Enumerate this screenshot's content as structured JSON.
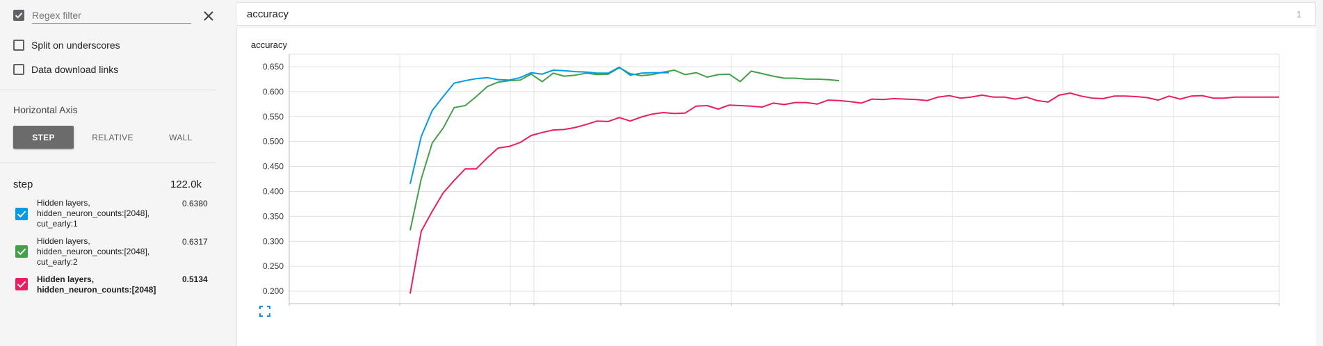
{
  "sidebar": {
    "regex_checkbox_checked": true,
    "regex_placeholder": "Regex filter",
    "split_on_underscores_label": "Split on underscores",
    "data_download_links_label": "Data download links",
    "horizontal_axis_title": "Horizontal Axis",
    "axis_buttons": [
      "STEP",
      "RELATIVE",
      "WALL"
    ],
    "axis_active": "STEP",
    "step_label": "step",
    "step_value": "122.0k",
    "runs": [
      {
        "lines": [
          "Hidden layers,",
          "hidden_neuron_counts:[2048],",
          "cut_early:1"
        ],
        "value": "0.6380",
        "color": "#039be5",
        "bold": false
      },
      {
        "lines": [
          "Hidden layers,",
          "hidden_neuron_counts:[2048],",
          "cut_early:2"
        ],
        "value": "0.6317",
        "color": "#43a047",
        "bold": false
      },
      {
        "lines": [
          "Hidden layers,",
          "hidden_neuron_counts:[2048]"
        ],
        "value": "0.5134",
        "color": "#e91e63",
        "bold": true
      }
    ]
  },
  "topbar": {
    "title": "accuracy",
    "count": "1"
  },
  "card": {
    "title": "accuracy"
  },
  "chart_data": {
    "type": "line",
    "title": "accuracy",
    "xlabel": "",
    "ylabel": "",
    "ylim": [
      0.175,
      0.675
    ],
    "xlim": [
      0,
      90
    ],
    "grid": true,
    "y_ticks": [
      "0.200",
      "0.250",
      "0.300",
      "0.350",
      "0.400",
      "0.450",
      "0.500",
      "0.550",
      "0.600",
      "0.650"
    ],
    "series": [
      {
        "color": "#039be5",
        "x": [
          11,
          12,
          13,
          14,
          15,
          16,
          17,
          18,
          19,
          20,
          21,
          22,
          23,
          24,
          25,
          26,
          27,
          28,
          29,
          30,
          31,
          32,
          33,
          34,
          34.5
        ],
        "y": [
          0.415,
          0.51,
          0.562,
          0.59,
          0.617,
          0.622,
          0.626,
          0.628,
          0.624,
          0.623,
          0.628,
          0.638,
          0.635,
          0.643,
          0.642,
          0.64,
          0.639,
          0.637,
          0.637,
          0.649,
          0.633,
          0.637,
          0.638,
          0.638,
          0.638
        ]
      },
      {
        "color": "#43a047",
        "x": [
          11,
          12,
          13,
          14,
          15,
          16,
          17,
          18,
          19,
          20,
          21,
          22,
          23,
          24,
          25,
          26,
          27,
          28,
          29,
          30,
          31,
          32,
          33,
          34,
          35,
          36,
          37,
          38,
          39,
          40,
          41,
          42,
          43,
          44,
          45,
          46,
          47,
          48,
          49,
          50
        ],
        "y": [
          0.322,
          0.425,
          0.497,
          0.527,
          0.568,
          0.572,
          0.59,
          0.61,
          0.619,
          0.622,
          0.623,
          0.635,
          0.62,
          0.637,
          0.631,
          0.633,
          0.637,
          0.634,
          0.635,
          0.648,
          0.636,
          0.632,
          0.634,
          0.639,
          0.643,
          0.634,
          0.638,
          0.629,
          0.634,
          0.635,
          0.62,
          0.641,
          0.636,
          0.631,
          0.627,
          0.627,
          0.625,
          0.625,
          0.624,
          0.622
        ]
      },
      {
        "color": "#e91e63",
        "x": [
          11,
          12,
          13,
          14,
          15,
          16,
          17,
          18,
          19,
          20,
          21,
          22,
          23,
          24,
          25,
          26,
          27,
          28,
          29,
          30,
          31,
          32,
          33,
          34,
          35,
          36,
          37,
          38,
          39,
          40,
          41,
          42,
          43,
          44,
          45,
          46,
          47,
          48,
          49,
          50,
          51,
          52,
          53,
          54,
          55,
          56,
          57,
          58,
          59,
          60,
          61,
          62,
          63,
          64,
          65,
          66,
          67,
          68,
          69,
          70,
          71,
          72,
          73,
          74,
          75,
          76,
          77,
          78,
          79,
          80,
          81,
          82,
          83,
          84,
          85,
          86,
          87,
          88,
          89,
          90
        ],
        "y": [
          0.195,
          0.32,
          0.36,
          0.397,
          0.422,
          0.445,
          0.445,
          0.467,
          0.487,
          0.49,
          0.498,
          0.512,
          0.518,
          0.523,
          0.524,
          0.528,
          0.534,
          0.541,
          0.54,
          0.548,
          0.541,
          0.549,
          0.555,
          0.558,
          0.556,
          0.557,
          0.571,
          0.572,
          0.565,
          0.573,
          0.572,
          0.571,
          0.569,
          0.577,
          0.574,
          0.578,
          0.578,
          0.575,
          0.583,
          0.582,
          0.58,
          0.577,
          0.585,
          0.584,
          0.586,
          0.585,
          0.584,
          0.582,
          0.589,
          0.592,
          0.587,
          0.589,
          0.593,
          0.589,
          0.589,
          0.585,
          0.589,
          0.582,
          0.579,
          0.593,
          0.597,
          0.591,
          0.587,
          0.586,
          0.591,
          0.591,
          0.59,
          0.588,
          0.583,
          0.591,
          0.585,
          0.591,
          0.592,
          0.587,
          0.587,
          0.589,
          0.589,
          0.589,
          0.589,
          0.589
        ]
      }
    ]
  }
}
